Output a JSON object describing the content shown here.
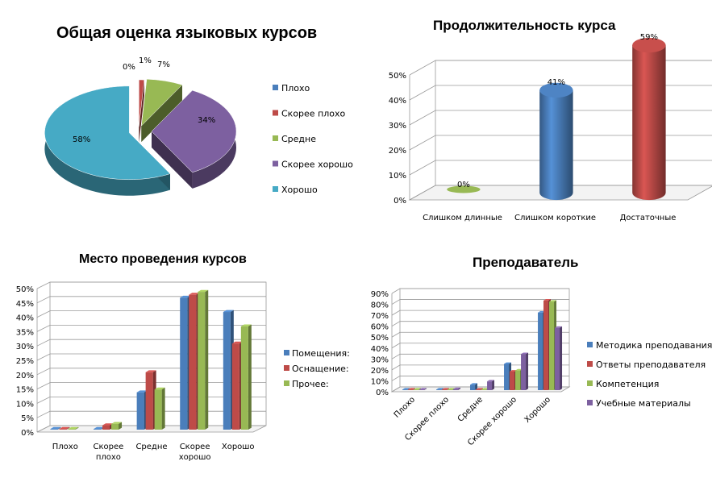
{
  "colors": {
    "blue": "#4A7EBB",
    "red": "#BE4B48",
    "green": "#98B954",
    "purple": "#7D60A0",
    "cyan": "#46AAC5"
  },
  "chart_data": [
    {
      "type": "pie",
      "title": "Общая оценка языковых курсов",
      "categories": [
        "Плохо",
        "Скорее плохо",
        "Средне",
        "Скорее хорошо",
        "Хорошо"
      ],
      "values": [
        0,
        1,
        7,
        34,
        58
      ],
      "data_labels": [
        "0%",
        "1%",
        "7%",
        "34%",
        "58%"
      ],
      "legend": "right"
    },
    {
      "type": "bar",
      "title": "Продолжительность курса",
      "categories": [
        "Слишком длинные",
        "Слишком короткие",
        "Достаточные"
      ],
      "values": [
        0,
        41,
        59
      ],
      "data_labels": [
        "0%",
        "41%",
        "59%"
      ],
      "ylim": [
        0,
        50
      ],
      "yticks": [
        "0%",
        "10%",
        "20%",
        "30%",
        "40%",
        "50%"
      ],
      "grid": true
    },
    {
      "type": "bar",
      "title": "Место проведения курсов",
      "categories": [
        "Плохо",
        "Скорее плохо",
        "Средне",
        "Скорее хорошо",
        "Хорошо"
      ],
      "series": [
        {
          "name": "Помещения:",
          "values": [
            0,
            0,
            13,
            46,
            41
          ]
        },
        {
          "name": "Оснащение:",
          "values": [
            0,
            1.5,
            20,
            47,
            30
          ]
        },
        {
          "name": "Прочее:",
          "values": [
            0,
            2,
            14,
            48,
            36
          ]
        }
      ],
      "ylim": [
        0,
        50
      ],
      "yticks": [
        "0%",
        "5%",
        "10%",
        "15%",
        "20%",
        "25%",
        "30%",
        "35%",
        "40%",
        "45%",
        "50%"
      ],
      "grid": true,
      "legend": "right"
    },
    {
      "type": "bar",
      "title": "Преподаватель",
      "categories": [
        "Плохо",
        "Скорее плохо",
        "Средне",
        "Скорее хорошо",
        "Хорошо"
      ],
      "series": [
        {
          "name": "Методика преподавания",
          "values": [
            0,
            0,
            5,
            24,
            71
          ]
        },
        {
          "name": "Ответы преподавателя",
          "values": [
            0,
            0,
            0,
            17,
            82
          ]
        },
        {
          "name": "Компетенция",
          "values": [
            0,
            0,
            0,
            18,
            81
          ]
        },
        {
          "name": "Учебные материалы",
          "values": [
            0,
            1,
            8,
            33,
            57
          ]
        }
      ],
      "ylim": [
        0,
        90
      ],
      "yticks": [
        "0%",
        "10%",
        "20%",
        "30%",
        "40%",
        "50%",
        "60%",
        "70%",
        "80%",
        "90%"
      ],
      "grid": true,
      "legend": "right"
    }
  ]
}
